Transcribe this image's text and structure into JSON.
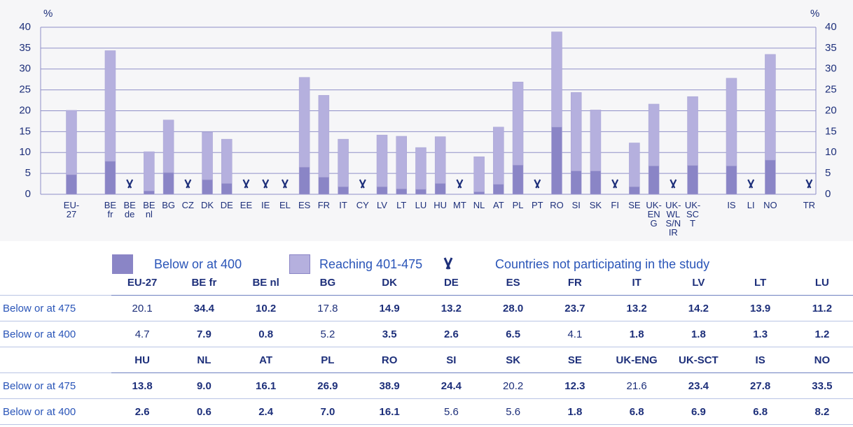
{
  "chart_data": {
    "type": "stacked_bar",
    "y_label": "%",
    "categories": [
      "EU-27",
      null,
      "BE fr",
      "BE de",
      "BE nl",
      "BG",
      "CZ",
      "DK",
      "DE",
      "EE",
      "IE",
      "EL",
      "ES",
      "FR",
      "IT",
      "CY",
      "LV",
      "LT",
      "LU",
      "HU",
      "MT",
      "NL",
      "AT",
      "PL",
      "PT",
      "RO",
      "SI",
      "SK",
      "FI",
      "SE",
      "UK-ENG",
      "UK-WLS/NIR",
      "UK-SCT",
      null,
      "IS",
      "LI",
      "NO",
      null,
      "TR"
    ],
    "series": [
      {
        "name": "Below or at 400",
        "color": "#8a85c6",
        "values": [
          4.7,
          null,
          7.9,
          null,
          0.8,
          5.2,
          null,
          3.5,
          2.6,
          null,
          null,
          null,
          6.5,
          4.1,
          1.8,
          null,
          1.8,
          1.3,
          1.2,
          2.6,
          null,
          0.6,
          2.4,
          7.0,
          null,
          16.1,
          5.6,
          5.6,
          null,
          1.8,
          6.8,
          null,
          6.9,
          null,
          6.8,
          null,
          8.2,
          null,
          null
        ]
      },
      {
        "name": "Reaching 401-475",
        "color": "#b5b0de",
        "values": [
          15.4,
          null,
          26.5,
          null,
          9.4,
          12.6,
          null,
          11.4,
          10.6,
          null,
          null,
          null,
          21.5,
          19.6,
          11.4,
          null,
          12.4,
          12.6,
          10.0,
          11.2,
          null,
          8.4,
          13.7,
          19.9,
          null,
          22.8,
          18.8,
          14.6,
          null,
          10.5,
          14.8,
          null,
          16.5,
          null,
          21.0,
          null,
          25.3,
          null,
          null
        ]
      }
    ],
    "missing_label": "Countries not participating in the study",
    "missing_color": "#1d2f7a",
    "ylim": [
      0,
      40
    ],
    "yticks": [
      0,
      5,
      10,
      15,
      20,
      25,
      30,
      35,
      40
    ],
    "grid": true,
    "grid_color": "#8f8fc8",
    "right_axis": true
  },
  "table": {
    "row_labels": [
      "Below or at 475",
      "Below or at 400"
    ],
    "blocks": [
      {
        "columns": [
          "EU-27",
          "BE fr",
          "BE nl",
          "BG",
          "DK",
          "DE",
          "ES",
          "FR",
          "IT",
          "LV",
          "LT",
          "LU"
        ],
        "rows": [
          {
            "values": [
              "20.1",
              "34.4",
              "10.2",
              "17.8",
              "14.9",
              "13.2",
              "28.0",
              "23.7",
              "13.2",
              "14.2",
              "13.9",
              "11.2"
            ],
            "bold": [
              false,
              true,
              true,
              false,
              true,
              true,
              true,
              true,
              true,
              true,
              true,
              true
            ]
          },
          {
            "values": [
              "4.7",
              "7.9",
              "0.8",
              "5.2",
              "3.5",
              "2.6",
              "6.5",
              "4.1",
              "1.8",
              "1.8",
              "1.3",
              "1.2"
            ],
            "bold": [
              false,
              true,
              true,
              false,
              true,
              true,
              true,
              false,
              true,
              true,
              true,
              true
            ]
          }
        ]
      },
      {
        "columns": [
          "HU",
          "NL",
          "AT",
          "PL",
          "RO",
          "SI",
          "SK",
          "SE",
          "UK-ENG",
          "UK-SCT",
          "IS",
          "NO"
        ],
        "rows": [
          {
            "values": [
              "13.8",
              "9.0",
              "16.1",
              "26.9",
              "38.9",
              "24.4",
              "20.2",
              "12.3",
              "21.6",
              "23.4",
              "27.8",
              "33.5"
            ],
            "bold": [
              true,
              true,
              true,
              true,
              true,
              true,
              false,
              true,
              false,
              true,
              true,
              true
            ]
          },
          {
            "values": [
              "2.6",
              "0.6",
              "2.4",
              "7.0",
              "16.1",
              "5.6",
              "5.6",
              "1.8",
              "6.8",
              "6.9",
              "6.8",
              "8.2"
            ],
            "bold": [
              true,
              true,
              true,
              true,
              true,
              false,
              false,
              true,
              true,
              true,
              true,
              true
            ]
          }
        ]
      }
    ]
  }
}
